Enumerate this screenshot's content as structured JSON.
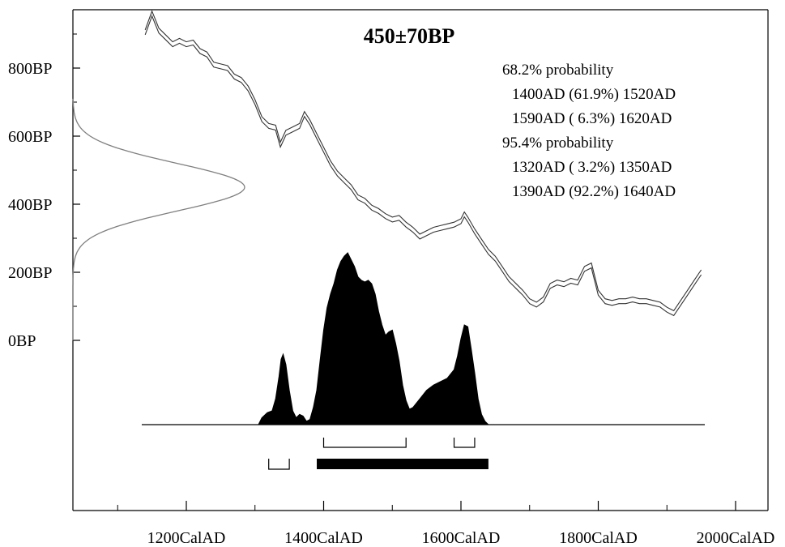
{
  "chart_data": {
    "type": "area",
    "title": "450±70BP",
    "xlabel": "",
    "ylabel": "",
    "xlim": [
      1040,
      2050
    ],
    "ylim": [
      -500,
      1000
    ],
    "x_ticks": [
      {
        "value": 1200,
        "label": "1200CalAD"
      },
      {
        "value": 1400,
        "label": "1400CalAD"
      },
      {
        "value": 1600,
        "label": "1600CalAD"
      },
      {
        "value": 1800,
        "label": "1800CalAD"
      },
      {
        "value": 2000,
        "label": "2000CalAD"
      }
    ],
    "x_minor_ticks": [
      1100,
      1300,
      1500,
      1700,
      1900
    ],
    "y_ticks": [
      {
        "value": 800,
        "label": "800BP"
      },
      {
        "value": 600,
        "label": "600BP"
      },
      {
        "value": 400,
        "label": "400BP"
      },
      {
        "value": 200,
        "label": "200BP"
      },
      {
        "value": 0,
        "label": "0BP"
      }
    ],
    "y_minor_ticks": [
      900,
      700,
      500,
      300,
      100
    ],
    "annotations": [
      "68.2% probability",
      "1400AD (61.9%) 1520AD",
      "1590AD ( 6.3%) 1620AD",
      "95.4% probability",
      "1320AD ( 3.2%) 1350AD",
      "1390AD (92.2%) 1640AD"
    ],
    "radiocarbon_date": {
      "mean_bp": 450,
      "sigma_bp": 70
    },
    "calibration_curve": {
      "x": [
        1140,
        1150,
        1160,
        1170,
        1180,
        1190,
        1200,
        1210,
        1220,
        1230,
        1240,
        1250,
        1260,
        1270,
        1280,
        1290,
        1300,
        1310,
        1320,
        1330,
        1337,
        1345,
        1355,
        1365,
        1372,
        1380,
        1390,
        1400,
        1410,
        1420,
        1430,
        1440,
        1450,
        1460,
        1470,
        1480,
        1490,
        1500,
        1510,
        1520,
        1530,
        1540,
        1550,
        1560,
        1570,
        1580,
        1590,
        1600,
        1605,
        1610,
        1620,
        1630,
        1640,
        1650,
        1660,
        1670,
        1680,
        1690,
        1700,
        1710,
        1720,
        1730,
        1740,
        1750,
        1760,
        1770,
        1780,
        1790,
        1800,
        1810,
        1820,
        1830,
        1840,
        1850,
        1860,
        1870,
        1880,
        1890,
        1900,
        1910,
        1920,
        1930,
        1940,
        1950
      ],
      "y": [
        905,
        960,
        910,
        890,
        870,
        880,
        870,
        875,
        850,
        840,
        810,
        805,
        800,
        775,
        765,
        740,
        700,
        650,
        630,
        625,
        575,
        610,
        620,
        630,
        665,
        640,
        600,
        560,
        520,
        490,
        470,
        450,
        420,
        410,
        390,
        380,
        365,
        355,
        360,
        340,
        325,
        305,
        315,
        325,
        330,
        335,
        340,
        350,
        370,
        355,
        320,
        290,
        260,
        240,
        210,
        180,
        160,
        140,
        115,
        105,
        120,
        160,
        170,
        165,
        175,
        170,
        210,
        220,
        140,
        115,
        110,
        115,
        115,
        120,
        115,
        115,
        110,
        105,
        90,
        80,
        110,
        140,
        170,
        200
      ]
    },
    "bp_distribution": {
      "peak_bp": 450,
      "sigma_bp": 70
    },
    "calibrated_distribution": {
      "x": [
        1305,
        1310,
        1318,
        1325,
        1330,
        1335,
        1338,
        1341,
        1345,
        1350,
        1355,
        1360,
        1365,
        1370,
        1375,
        1380,
        1385,
        1390,
        1395,
        1400,
        1405,
        1410,
        1415,
        1420,
        1425,
        1430,
        1435,
        1440,
        1445,
        1450,
        1455,
        1460,
        1465,
        1470,
        1475,
        1480,
        1485,
        1490,
        1495,
        1500,
        1505,
        1510,
        1515,
        1520,
        1525,
        1530,
        1540,
        1550,
        1560,
        1570,
        1580,
        1590,
        1595,
        1600,
        1605,
        1610,
        1615,
        1620,
        1625,
        1630,
        1635,
        1640
      ],
      "y": [
        0,
        0.04,
        0.07,
        0.08,
        0.15,
        0.28,
        0.38,
        0.41,
        0.35,
        0.2,
        0.08,
        0.04,
        0.06,
        0.05,
        0.02,
        0.03,
        0.1,
        0.2,
        0.38,
        0.55,
        0.68,
        0.76,
        0.82,
        0.9,
        0.95,
        0.98,
        1.0,
        0.96,
        0.92,
        0.86,
        0.84,
        0.83,
        0.84,
        0.82,
        0.76,
        0.66,
        0.58,
        0.52,
        0.54,
        0.55,
        0.47,
        0.37,
        0.23,
        0.14,
        0.09,
        0.1,
        0.15,
        0.2,
        0.23,
        0.25,
        0.27,
        0.32,
        0.4,
        0.5,
        0.58,
        0.57,
        0.44,
        0.3,
        0.15,
        0.06,
        0.02,
        0.0
      ]
    },
    "ranges_68": [
      [
        1400,
        1520
      ],
      [
        1590,
        1620
      ]
    ],
    "ranges_95": [
      [
        1320,
        1350
      ],
      [
        1390,
        1640
      ]
    ],
    "grid": false
  }
}
